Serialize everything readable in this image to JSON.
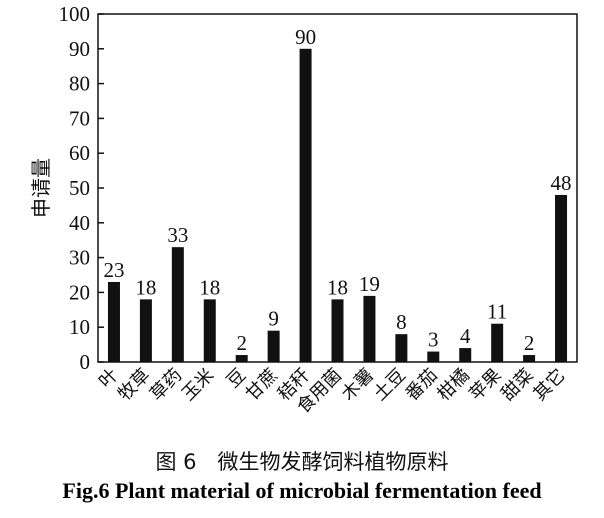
{
  "chart_data": {
    "type": "bar",
    "ylabel": "申请量",
    "xlabel": "",
    "ylim": [
      0,
      100
    ],
    "yticks": [
      0,
      10,
      20,
      30,
      40,
      50,
      60,
      70,
      80,
      90,
      100
    ],
    "grid": false,
    "categories": [
      "叶",
      "牧草",
      "草药",
      "玉米",
      "豆",
      "甘蔗",
      "秸秆",
      "食用菌",
      "木薯",
      "土豆",
      "番茄",
      "柑橘",
      "苹果",
      "甜菜",
      "其它"
    ],
    "values": [
      23,
      18,
      33,
      18,
      2,
      9,
      90,
      18,
      19,
      8,
      3,
      4,
      11,
      2,
      48
    ],
    "bar_color": "#111111"
  },
  "caption": {
    "cn": "图 6　微生物发酵饲料植物原料",
    "en": "Fig.6 Plant material of microbial fermentation feed"
  }
}
